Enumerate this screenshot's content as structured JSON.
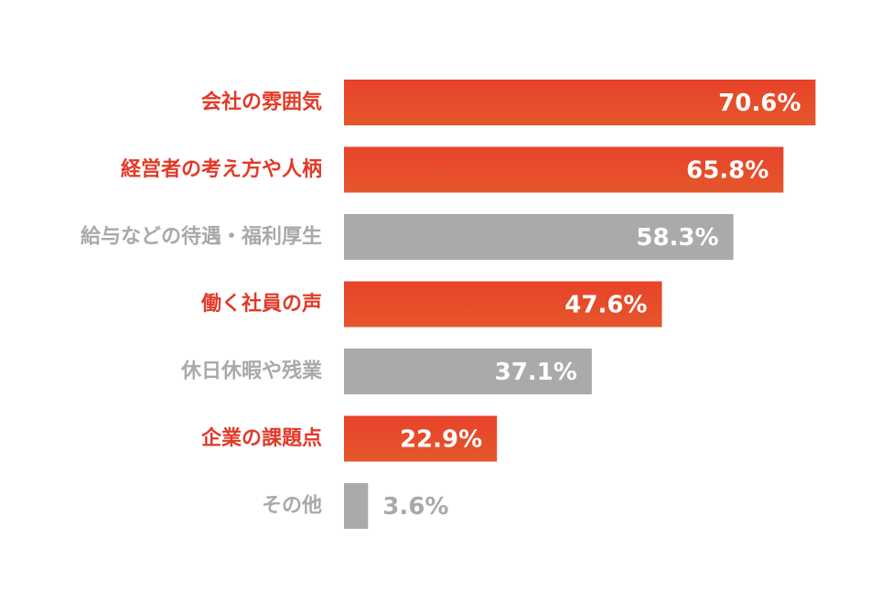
{
  "chart_data": {
    "type": "bar",
    "orientation": "horizontal",
    "categories": [
      "会社の雰囲気",
      "経営者の考え方や人柄",
      "給与などの待遇・福利厚生",
      "働く社員の声",
      "休日休暇や残業",
      "企業の課題点",
      "その他"
    ],
    "values": [
      70.6,
      65.8,
      58.3,
      47.6,
      37.1,
      22.9,
      3.6
    ],
    "data_labels": [
      "70.6%",
      "65.8%",
      "58.3%",
      "47.6%",
      "37.1%",
      "22.9%",
      "3.6%"
    ],
    "highlighted": [
      true,
      true,
      false,
      true,
      false,
      true,
      false
    ],
    "xlim": [
      0,
      100
    ],
    "grid": false,
    "legend": "none",
    "colors": {
      "highlight_bar": "#e8422a",
      "highlight_bar_bottom": "#e4572b",
      "muted_bar": "#aaaaaa",
      "highlight_label": "#e23a28",
      "muted_label": "#a9a9a9",
      "value_on_bar": "#ffffff",
      "value_outside": "#a9a9a9"
    }
  }
}
